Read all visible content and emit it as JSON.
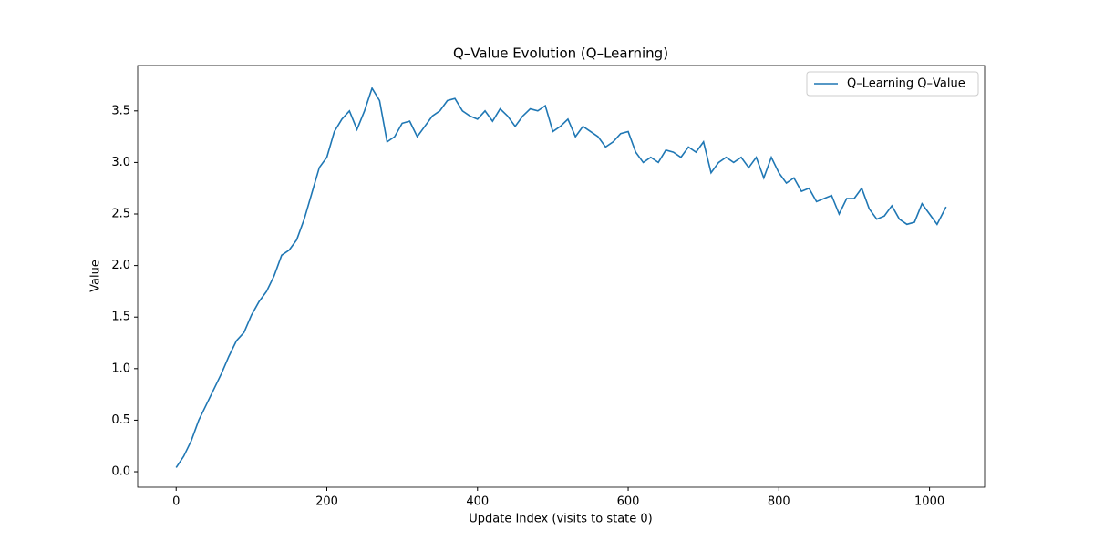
{
  "chart_data": {
    "type": "line",
    "title": "Q–Value Evolution (Q–Learning)",
    "xlabel": "Update Index (visits to state 0)",
    "ylabel": "Value",
    "x": [
      0,
      10,
      20,
      30,
      40,
      50,
      60,
      70,
      80,
      90,
      100,
      110,
      120,
      130,
      140,
      150,
      160,
      170,
      180,
      190,
      200,
      210,
      220,
      230,
      240,
      250,
      260,
      270,
      280,
      290,
      300,
      310,
      320,
      330,
      340,
      350,
      360,
      370,
      380,
      390,
      400,
      410,
      420,
      430,
      440,
      450,
      460,
      470,
      480,
      490,
      500,
      510,
      520,
      530,
      540,
      550,
      560,
      570,
      580,
      590,
      600,
      610,
      620,
      630,
      640,
      650,
      660,
      670,
      680,
      690,
      700,
      710,
      720,
      730,
      740,
      750,
      760,
      770,
      780,
      790,
      800,
      810,
      820,
      830,
      840,
      850,
      860,
      870,
      880,
      890,
      900,
      910,
      920,
      930,
      940,
      950,
      960,
      970,
      980,
      990,
      1000,
      1010,
      1022
    ],
    "series": [
      {
        "name": "Q–Learning Q–Value",
        "color": "#1f77b4",
        "values": [
          0.04,
          0.15,
          0.3,
          0.5,
          0.65,
          0.8,
          0.95,
          1.12,
          1.27,
          1.35,
          1.52,
          1.65,
          1.75,
          1.9,
          2.1,
          2.15,
          2.25,
          2.45,
          2.7,
          2.95,
          3.05,
          3.3,
          3.42,
          3.5,
          3.32,
          3.5,
          3.72,
          3.6,
          3.2,
          3.25,
          3.38,
          3.4,
          3.25,
          3.35,
          3.45,
          3.5,
          3.6,
          3.62,
          3.5,
          3.45,
          3.42,
          3.5,
          3.4,
          3.52,
          3.45,
          3.35,
          3.45,
          3.52,
          3.5,
          3.55,
          3.3,
          3.35,
          3.42,
          3.25,
          3.35,
          3.3,
          3.25,
          3.15,
          3.2,
          3.28,
          3.3,
          3.1,
          3.0,
          3.05,
          3.0,
          3.12,
          3.1,
          3.05,
          3.15,
          3.1,
          3.2,
          2.9,
          3.0,
          3.05,
          3.0,
          3.05,
          2.95,
          3.05,
          2.85,
          3.05,
          2.9,
          2.8,
          2.85,
          2.72,
          2.75,
          2.62,
          2.65,
          2.68,
          2.5,
          2.65,
          2.65,
          2.75,
          2.55,
          2.45,
          2.48,
          2.58,
          2.45,
          2.4,
          2.42,
          2.6,
          2.5,
          2.4,
          2.57
        ]
      }
    ],
    "xlim": [
      -51.1,
      1073.1
    ],
    "ylim": [
      -0.15,
      3.94
    ],
    "xticks": [
      0,
      200,
      400,
      600,
      800,
      1000
    ],
    "yticks": [
      {
        "value": 0,
        "label": "0.0"
      },
      0.5,
      {
        "value": 1,
        "label": "1.0"
      },
      1.5,
      {
        "value": 2,
        "label": "2.0"
      },
      2.5,
      {
        "value": 3,
        "label": "3.0"
      },
      3.5
    ],
    "legend": "upper right"
  }
}
